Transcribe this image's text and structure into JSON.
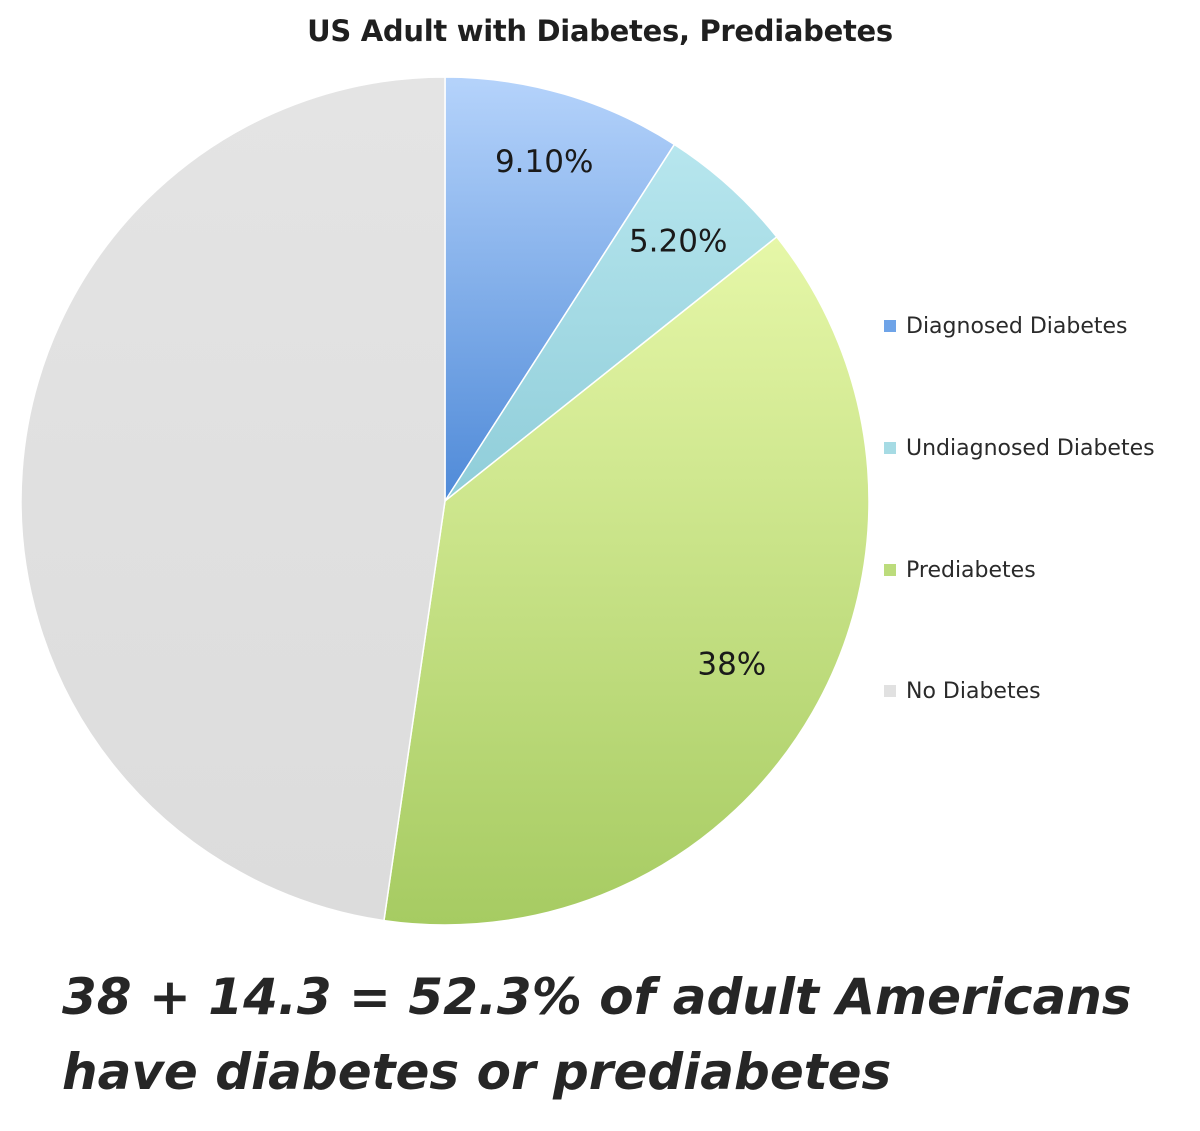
{
  "chart_data": {
    "type": "pie",
    "title": "US Adult with Diabetes, Prediabetes",
    "categories": [
      "Diagnosed Diabetes",
      "Undiagnosed Diabetes",
      "Prediabetes",
      "No Diabetes"
    ],
    "values": [
      9.1,
      5.2,
      38,
      47.7
    ],
    "data_labels": [
      "9.10%",
      "5.20%",
      "38%",
      ""
    ],
    "colors": [
      "#6fa4e8",
      "#a6dbe4",
      "#bcdc7c",
      "#e1e1e1"
    ],
    "legend_position": "right"
  },
  "footer": {
    "line1": "38 + 14.3 = 52.3% of adult Americans",
    "line2": "have diabetes or prediabetes"
  }
}
